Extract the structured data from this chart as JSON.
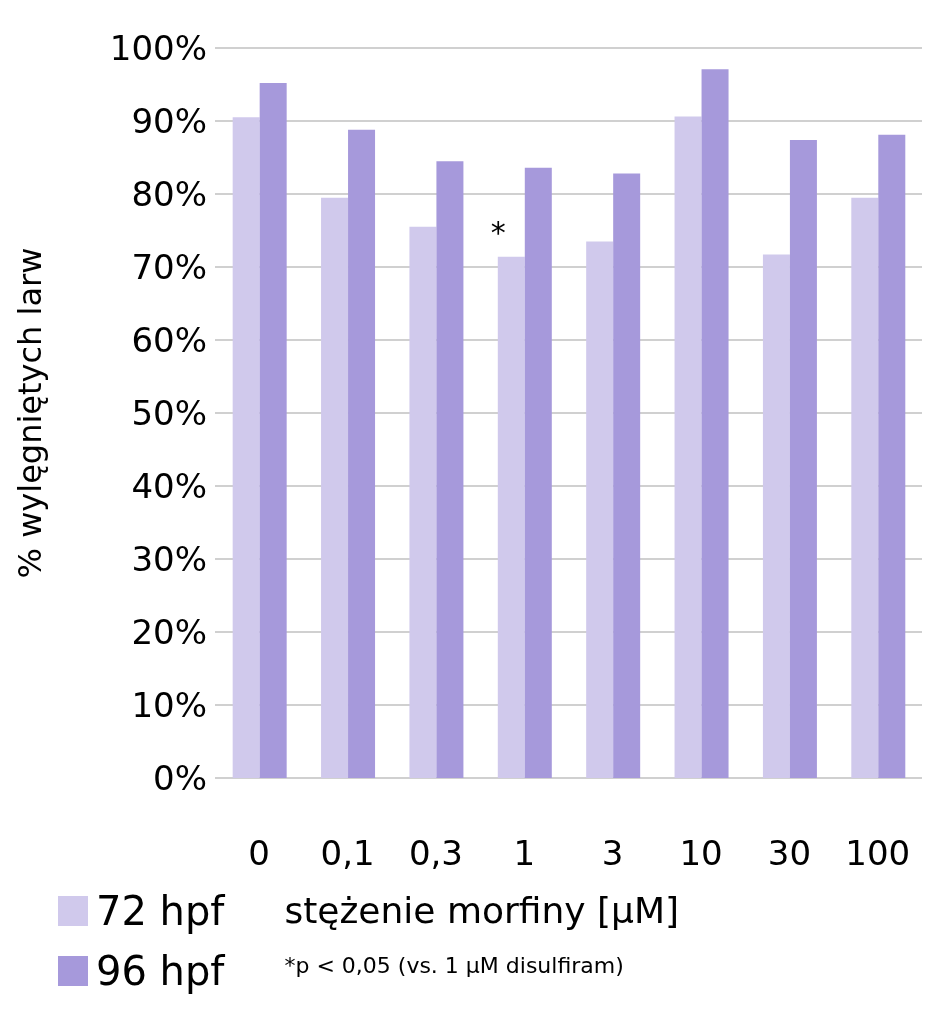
{
  "chart_data": {
    "type": "bar",
    "ylabel": "% wylęgniętych larw",
    "xlabel": "stężenie morfiny [μM]",
    "categories": [
      "0",
      "0,1",
      "0,3",
      "1",
      "3",
      "10",
      "30",
      "100"
    ],
    "series": [
      {
        "name": "72 hpf",
        "color": "#d0c9ec",
        "values": [
          90.5,
          79.5,
          75.5,
          71.4,
          73.5,
          90.6,
          71.7,
          79.5
        ]
      },
      {
        "name": "96 hpf",
        "color": "#a699db",
        "values": [
          95.2,
          88.8,
          84.5,
          83.6,
          82.8,
          97.1,
          87.4,
          88.1
        ]
      }
    ],
    "ylim": [
      0,
      100
    ],
    "yticks": [
      {
        "value": 0,
        "label": "0%"
      },
      {
        "value": 10,
        "label": "10%"
      },
      {
        "value": 20,
        "label": "20%"
      },
      {
        "value": 30,
        "label": "30%"
      },
      {
        "value": 40,
        "label": "40%"
      },
      {
        "value": 50,
        "label": "50%"
      },
      {
        "value": 60,
        "label": "60%"
      },
      {
        "value": 70,
        "label": "70%"
      },
      {
        "value": 80,
        "label": "80%"
      },
      {
        "value": 90,
        "label": "90%"
      },
      {
        "value": 100,
        "label": "100%"
      }
    ],
    "grid": "y",
    "legend": "bottom left",
    "annotations": [
      {
        "text": "*",
        "x": "1",
        "y": 71.4
      },
      "*p < 0,05 (vs. 1 μM disulfiram)"
    ]
  }
}
